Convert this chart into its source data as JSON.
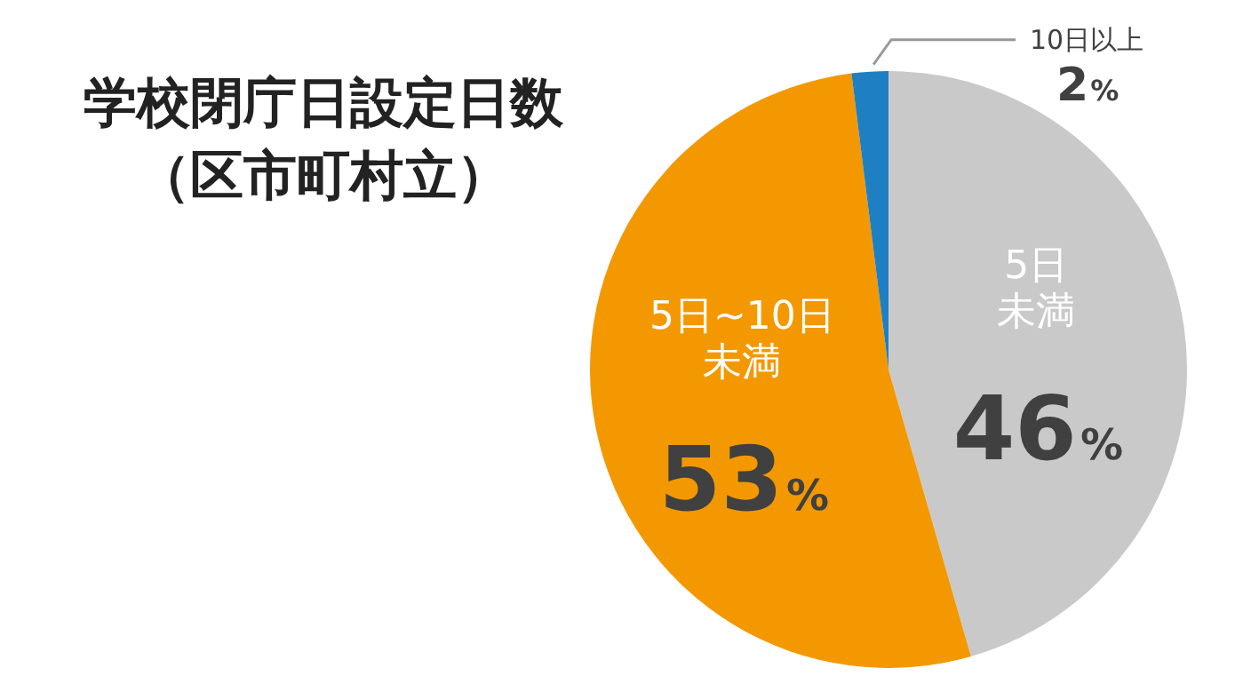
{
  "chart_data": {
    "type": "pie",
    "title": "学校閉庁日設定日数",
    "subtitle": "（区市町村立）",
    "categories": [
      "5日未満",
      "5日~10日未満",
      "10日以上"
    ],
    "values": [
      46,
      53,
      2
    ],
    "value_labels": [
      "46%",
      "53%",
      "2%"
    ],
    "colors": [
      "#c9c9c9",
      "#f39800",
      "#1e7fc3"
    ],
    "legend": false
  }
}
